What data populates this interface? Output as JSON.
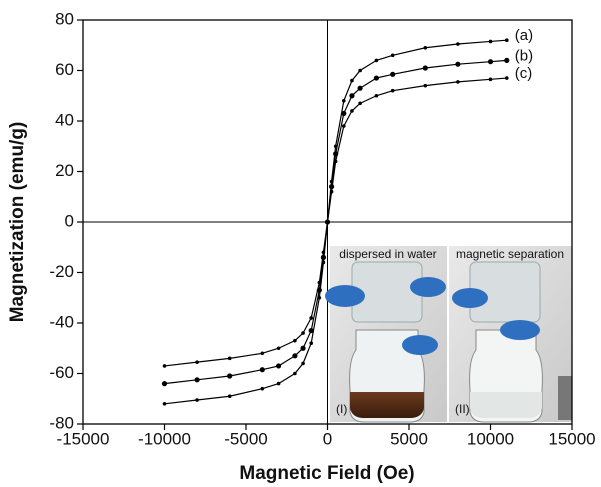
{
  "chart_data": {
    "type": "line",
    "x_label": "Magnetic Field (Oe)",
    "y_label": "Magnetization (emu/g)",
    "x": [
      -10000,
      -8000,
      -6000,
      -4000,
      -3000,
      -2000,
      -1500,
      -1000,
      -500,
      -250,
      0,
      250,
      500,
      1000,
      1500,
      2000,
      3000,
      4000,
      6000,
      8000,
      10000,
      11000
    ],
    "series": [
      {
        "name": "(a)",
        "color": "#000000",
        "values": [
          -72,
          -70.5,
          -69,
          -66,
          -64,
          -60,
          -56,
          -48,
          -30,
          -16,
          0,
          16,
          30,
          48,
          56,
          60,
          64,
          66,
          69,
          70.5,
          71.5,
          72
        ]
      },
      {
        "name": "(b)",
        "color": "#000000",
        "values": [
          -64,
          -62.5,
          -61,
          -58.5,
          -57,
          -53,
          -50,
          -43,
          -27,
          -14,
          0,
          14,
          27,
          43,
          50,
          53,
          57,
          58.5,
          61,
          62.5,
          63.5,
          64
        ]
      },
      {
        "name": "(c)",
        "color": "#000000",
        "values": [
          -57,
          -55.5,
          -54,
          -52,
          -50,
          -47,
          -44,
          -38,
          -24,
          -12,
          0,
          12,
          24,
          38,
          44,
          47,
          50,
          52,
          54,
          55.5,
          56.5,
          57
        ]
      }
    ],
    "xlim": [
      -15000,
      15000
    ],
    "xticks": [
      -15000,
      -10000,
      -5000,
      0,
      5000,
      10000,
      15000
    ],
    "ylim": [
      -80,
      80
    ],
    "yticks": [
      -80,
      -60,
      -40,
      -20,
      0,
      20,
      40,
      60,
      80
    ],
    "inset": {
      "photos": [
        {
          "caption": "dispersed in water",
          "label": "(I)"
        },
        {
          "caption": "magnetic separation",
          "label": "(II)"
        }
      ]
    }
  }
}
